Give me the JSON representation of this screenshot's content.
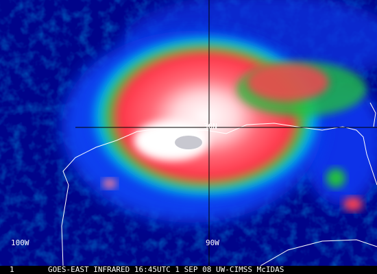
{
  "grid_labels": {
    "latitude": "30N",
    "longitude_west": "100W",
    "longitude_east": "90W"
  },
  "footer": {
    "frame": "1",
    "caption": "GOES-EAST INFRARED 16:45UTC 1 SEP 08 UW-CIMSS McIDAS"
  }
}
